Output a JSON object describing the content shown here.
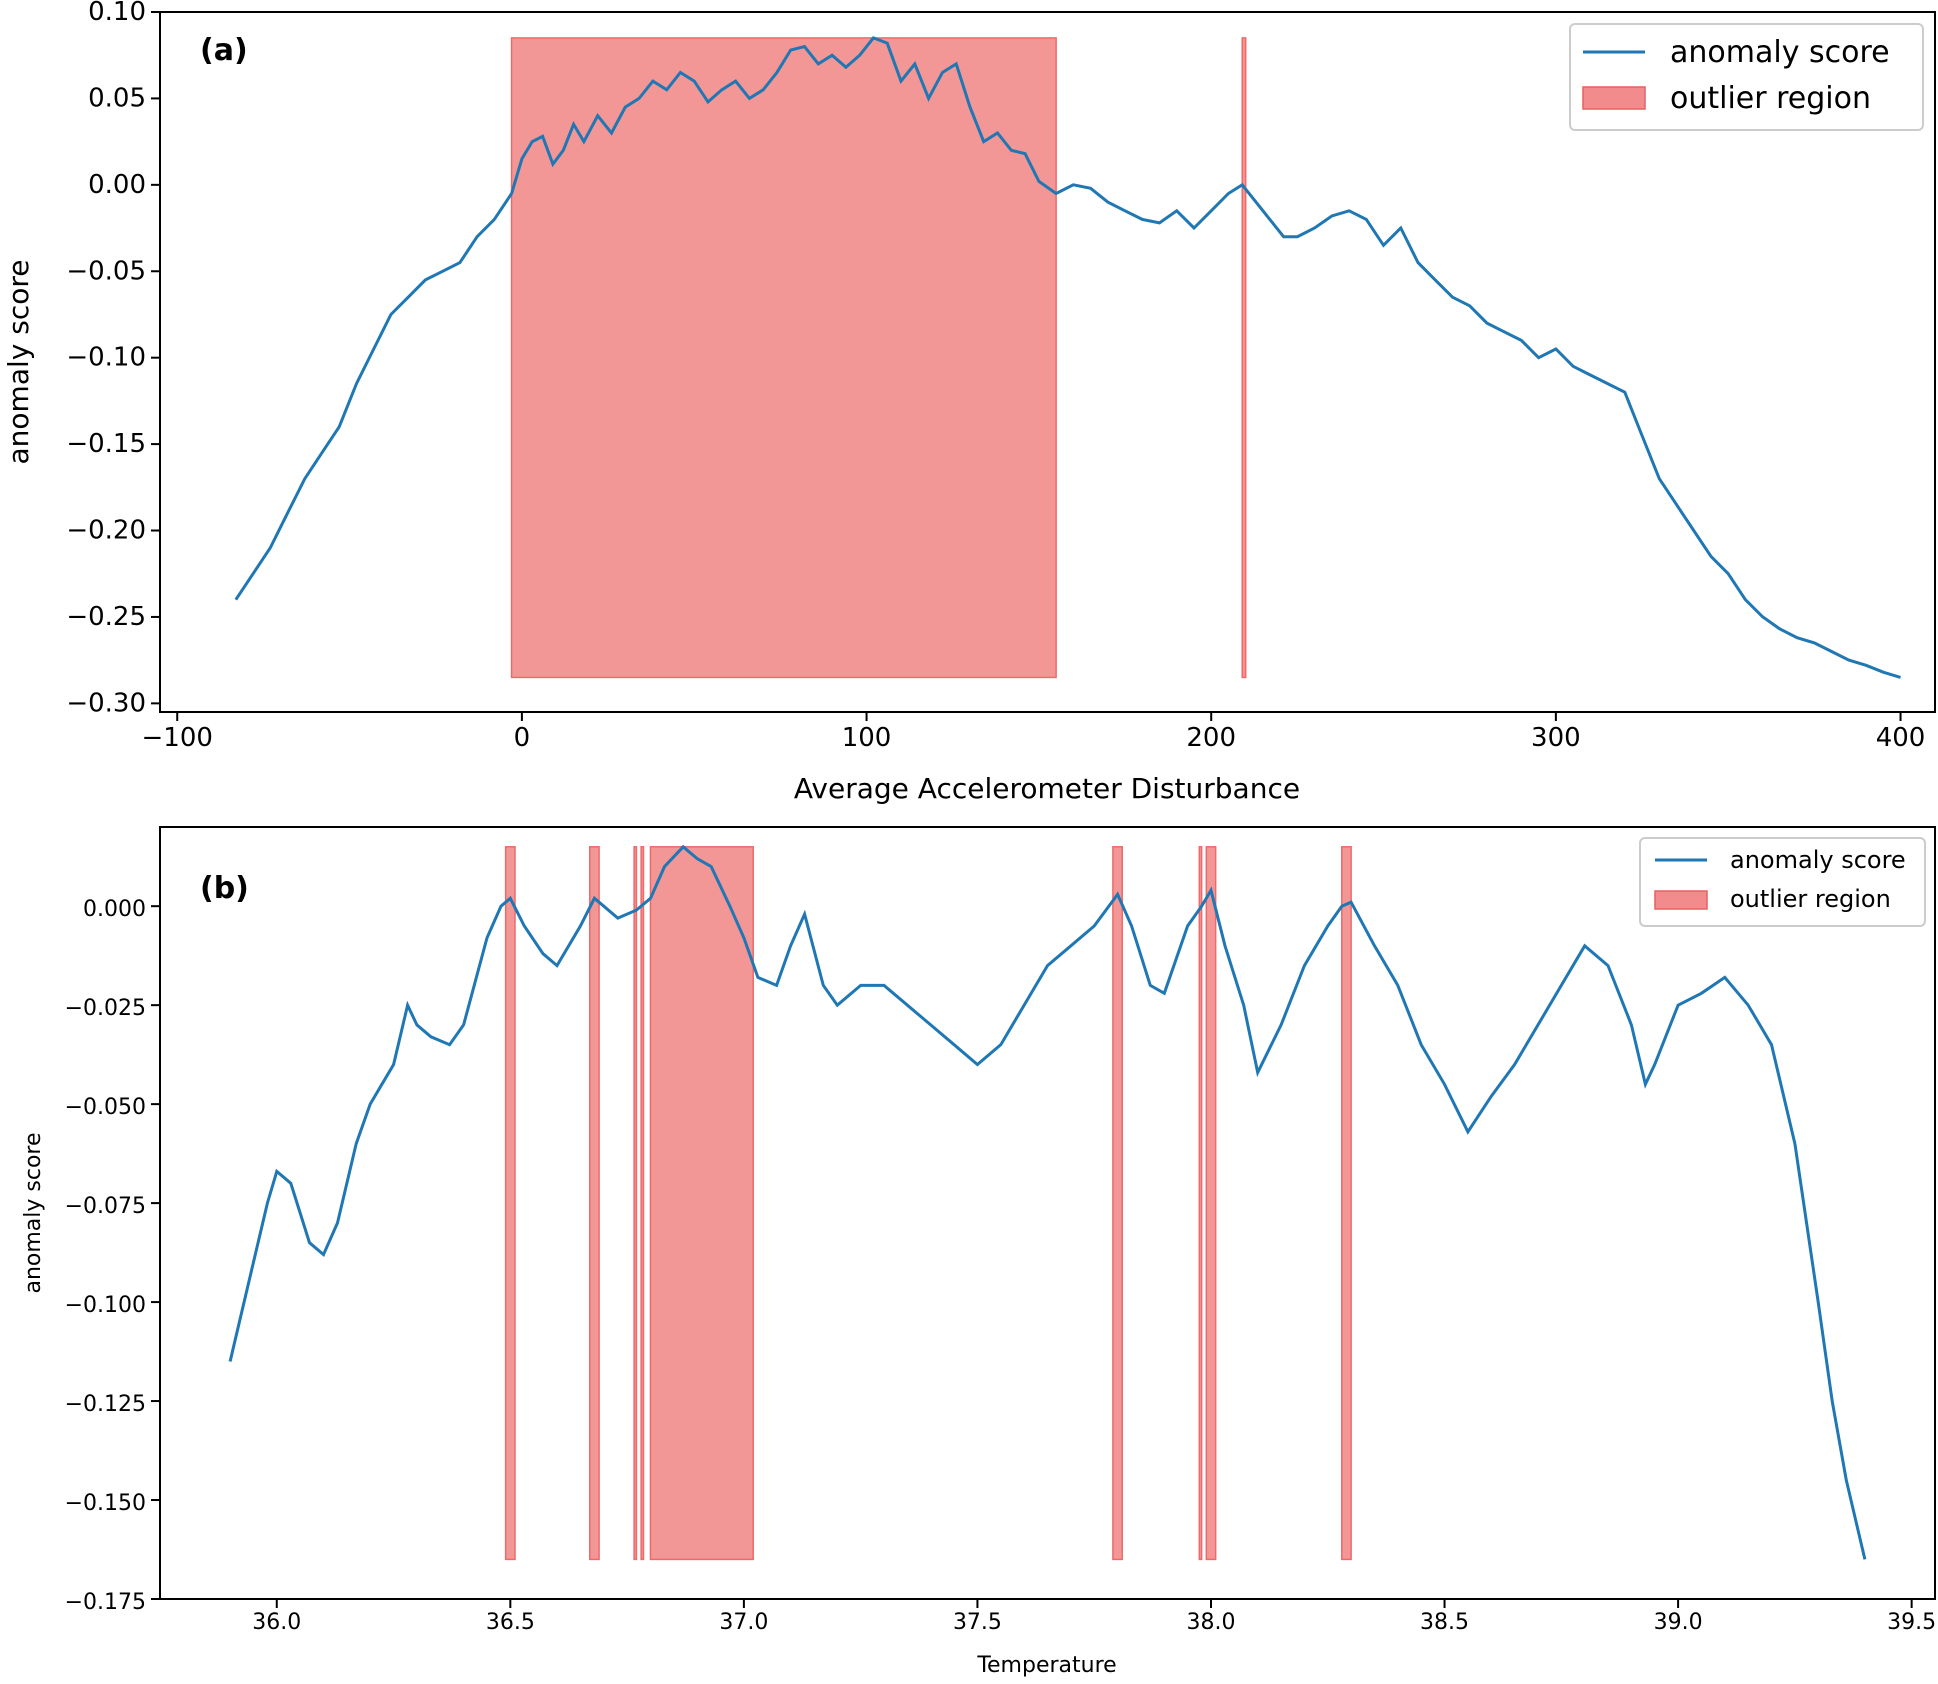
{
  "chart_data": [
    {
      "type": "line",
      "panel_label": "(a)",
      "xlabel": "Average Accelerometer Disturbance",
      "ylabel": "anomaly score",
      "xlim": [
        -105,
        410
      ],
      "ylim": [
        -0.305,
        0.1
      ],
      "x_ticks": [
        -100,
        0,
        100,
        200,
        300,
        400
      ],
      "x_tick_labels": [
        "−100",
        "0",
        "100",
        "200",
        "300",
        "400"
      ],
      "y_ticks": [
        0.1,
        0.05,
        0.0,
        -0.05,
        -0.1,
        -0.15,
        -0.2,
        -0.25,
        -0.3
      ],
      "y_tick_labels": [
        "0.10",
        "0.05",
        "0.00",
        "−0.05",
        "−0.10",
        "−0.15",
        "−0.20",
        "−0.25",
        "−0.30"
      ],
      "legend": {
        "placement": "top-right",
        "entries": [
          {
            "label": "anomaly score",
            "kind": "line",
            "color": "#1f77b4"
          },
          {
            "label": "outlier region",
            "kind": "patch",
            "color": "#f28b8b"
          }
        ]
      },
      "series": [
        {
          "name": "anomaly score",
          "color": "#1f77b4",
          "x": [
            -83,
            -78,
            -73,
            -68,
            -63,
            -58,
            -53,
            -48,
            -43,
            -38,
            -33,
            -28,
            -23,
            -18,
            -13,
            -8,
            -3,
            0,
            3,
            6,
            9,
            12,
            15,
            18,
            22,
            26,
            30,
            34,
            38,
            42,
            46,
            50,
            54,
            58,
            62,
            66,
            70,
            74,
            78,
            82,
            86,
            90,
            94,
            98,
            102,
            106,
            110,
            114,
            118,
            122,
            126,
            130,
            134,
            138,
            142,
            146,
            150,
            155,
            160,
            165,
            170,
            175,
            180,
            185,
            190,
            195,
            200,
            205,
            209,
            213,
            217,
            221,
            225,
            230,
            235,
            240,
            245,
            250,
            255,
            260,
            265,
            270,
            275,
            280,
            285,
            290,
            295,
            300,
            305,
            310,
            315,
            320,
            325,
            330,
            335,
            340,
            345,
            350,
            355,
            360,
            365,
            370,
            375,
            380,
            385,
            390,
            395,
            400
          ],
          "y": [
            -0.24,
            -0.225,
            -0.21,
            -0.19,
            -0.17,
            -0.155,
            -0.14,
            -0.115,
            -0.095,
            -0.075,
            -0.065,
            -0.055,
            -0.05,
            -0.045,
            -0.03,
            -0.02,
            -0.005,
            0.015,
            0.025,
            0.028,
            0.012,
            0.02,
            0.035,
            0.025,
            0.04,
            0.03,
            0.045,
            0.05,
            0.06,
            0.055,
            0.065,
            0.06,
            0.048,
            0.055,
            0.06,
            0.05,
            0.055,
            0.065,
            0.078,
            0.08,
            0.07,
            0.075,
            0.068,
            0.075,
            0.085,
            0.082,
            0.06,
            0.07,
            0.05,
            0.065,
            0.07,
            0.045,
            0.025,
            0.03,
            0.02,
            0.018,
            0.002,
            -0.005,
            0.0,
            -0.002,
            -0.01,
            -0.015,
            -0.02,
            -0.022,
            -0.015,
            -0.025,
            -0.015,
            -0.005,
            0.0,
            -0.01,
            -0.02,
            -0.03,
            -0.03,
            -0.025,
            -0.018,
            -0.015,
            -0.02,
            -0.035,
            -0.025,
            -0.045,
            -0.055,
            -0.065,
            -0.07,
            -0.08,
            -0.085,
            -0.09,
            -0.1,
            -0.095,
            -0.105,
            -0.11,
            -0.115,
            -0.12,
            -0.145,
            -0.17,
            -0.185,
            -0.2,
            -0.215,
            -0.225,
            -0.24,
            -0.25,
            -0.257,
            -0.262,
            -0.265,
            -0.27,
            -0.275,
            -0.278,
            -0.282,
            -0.285
          ]
        }
      ],
      "outlier_regions": [
        [
          -3,
          155
        ],
        [
          209,
          210
        ]
      ],
      "region_y_range": [
        -0.285,
        0.085
      ]
    },
    {
      "type": "line",
      "panel_label": "(b)",
      "xlabel": "Temperature",
      "ylabel": "anomaly score",
      "xlim": [
        35.75,
        39.55
      ],
      "ylim": [
        -0.175,
        0.02
      ],
      "x_ticks": [
        36.0,
        36.5,
        37.0,
        37.5,
        38.0,
        38.5,
        39.0,
        39.5
      ],
      "x_tick_labels": [
        "36.0",
        "36.5",
        "37.0",
        "37.5",
        "38.0",
        "38.5",
        "39.0",
        "39.5"
      ],
      "y_ticks": [
        0.0,
        -0.025,
        -0.05,
        -0.075,
        -0.1,
        -0.125,
        -0.15,
        -0.175
      ],
      "y_tick_labels": [
        "0.000",
        "−0.025",
        "−0.050",
        "−0.075",
        "−0.100",
        "−0.125",
        "−0.150",
        "−0.175"
      ],
      "legend": {
        "placement": "top-right",
        "entries": [
          {
            "label": "anomaly score",
            "kind": "line",
            "color": "#1f77b4"
          },
          {
            "label": "outlier region",
            "kind": "patch",
            "color": "#f28b8b"
          }
        ]
      },
      "series": [
        {
          "name": "anomaly score",
          "color": "#1f77b4",
          "x": [
            35.9,
            35.95,
            35.98,
            36.0,
            36.03,
            36.07,
            36.1,
            36.13,
            36.17,
            36.2,
            36.25,
            36.28,
            36.3,
            36.33,
            36.37,
            36.4,
            36.45,
            36.48,
            36.5,
            36.53,
            36.57,
            36.6,
            36.65,
            36.68,
            36.7,
            36.73,
            36.77,
            36.8,
            36.83,
            36.87,
            36.9,
            36.93,
            36.97,
            37.0,
            37.03,
            37.07,
            37.1,
            37.13,
            37.17,
            37.2,
            37.25,
            37.3,
            37.35,
            37.4,
            37.45,
            37.5,
            37.55,
            37.6,
            37.65,
            37.7,
            37.75,
            37.8,
            37.83,
            37.87,
            37.9,
            37.95,
            37.98,
            38.0,
            38.03,
            38.07,
            38.1,
            38.15,
            38.2,
            38.25,
            38.28,
            38.3,
            38.35,
            38.4,
            38.45,
            38.5,
            38.55,
            38.6,
            38.65,
            38.7,
            38.75,
            38.8,
            38.85,
            38.9,
            38.93,
            38.95,
            39.0,
            39.05,
            39.1,
            39.15,
            39.2,
            39.25,
            39.3,
            39.33,
            39.36,
            39.38,
            39.4
          ],
          "y": [
            -0.115,
            -0.09,
            -0.075,
            -0.067,
            -0.07,
            -0.085,
            -0.088,
            -0.08,
            -0.06,
            -0.05,
            -0.04,
            -0.025,
            -0.03,
            -0.033,
            -0.035,
            -0.03,
            -0.008,
            0.0,
            0.002,
            -0.005,
            -0.012,
            -0.015,
            -0.005,
            0.002,
            0.0,
            -0.003,
            -0.001,
            0.002,
            0.01,
            0.015,
            0.012,
            0.01,
            0.0,
            -0.008,
            -0.018,
            -0.02,
            -0.01,
            -0.002,
            -0.02,
            -0.025,
            -0.02,
            -0.02,
            -0.025,
            -0.03,
            -0.035,
            -0.04,
            -0.035,
            -0.025,
            -0.015,
            -0.01,
            -0.005,
            0.003,
            -0.005,
            -0.02,
            -0.022,
            -0.005,
            0.0,
            0.004,
            -0.01,
            -0.025,
            -0.042,
            -0.03,
            -0.015,
            -0.005,
            0.0,
            0.001,
            -0.01,
            -0.02,
            -0.035,
            -0.045,
            -0.057,
            -0.048,
            -0.04,
            -0.03,
            -0.02,
            -0.01,
            -0.015,
            -0.03,
            -0.045,
            -0.04,
            -0.025,
            -0.022,
            -0.018,
            -0.025,
            -0.035,
            -0.06,
            -0.1,
            -0.125,
            -0.145,
            -0.155,
            -0.165
          ]
        }
      ],
      "outlier_regions": [
        [
          36.49,
          36.51
        ],
        [
          36.67,
          36.69
        ],
        [
          36.765,
          36.77
        ],
        [
          36.78,
          36.785
        ],
        [
          36.8,
          37.02
        ],
        [
          37.79,
          37.81
        ],
        [
          37.975,
          37.98
        ],
        [
          37.99,
          38.01
        ],
        [
          38.28,
          38.3
        ]
      ],
      "region_y_range": [
        -0.165,
        0.015
      ]
    }
  ]
}
